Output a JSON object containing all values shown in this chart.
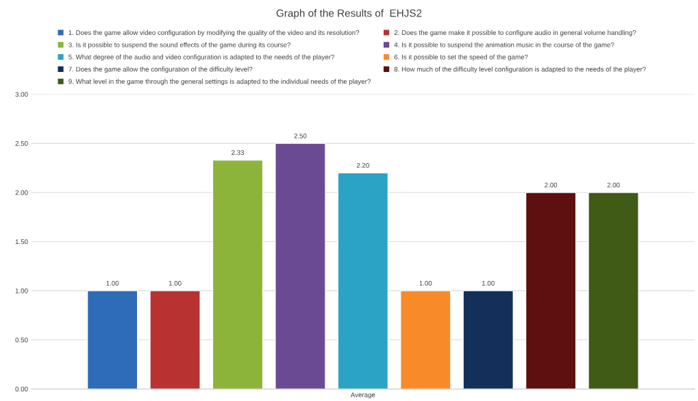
{
  "chart_data": {
    "type": "bar",
    "title": "Graph of the Results of  EHJS2",
    "categories": [
      "Average"
    ],
    "series": [
      {
        "name": "1. Does the game allow video configuration by modifying the quality of the video and its resolution?",
        "color": "#2e6bb8",
        "values": [
          1.0
        ],
        "value_labels": [
          "1.00"
        ]
      },
      {
        "name": "2. Does the game make it possible to configure audio in general volume handling?",
        "color": "#b83232",
        "values": [
          1.0
        ],
        "value_labels": [
          "1.00"
        ]
      },
      {
        "name": "3. Is it possible to suspend the sound effects of the game during its course?",
        "color": "#8cb43a",
        "values": [
          2.33
        ],
        "value_labels": [
          "2.33"
        ]
      },
      {
        "name": "4. Is it possible to suspend the animation music in the course of the game?",
        "color": "#6a4a93",
        "values": [
          2.5
        ],
        "value_labels": [
          "2.50"
        ]
      },
      {
        "name": "5. What degree of the audio and video configuration is adapted to the needs of the player?",
        "color": "#2aa3c4",
        "values": [
          2.2
        ],
        "value_labels": [
          "2.20"
        ]
      },
      {
        "name": "6. Is it possible to set the speed of the game?",
        "color": "#f98a2a",
        "values": [
          1.0
        ],
        "value_labels": [
          "1.00"
        ]
      },
      {
        "name": "7. Does the game allow the configuration of the difficulty level?",
        "color": "#132f5a",
        "values": [
          1.0
        ],
        "value_labels": [
          "1.00"
        ]
      },
      {
        "name": "8. How much of the difficulty level configuration is adapted to the needs of the player?",
        "color": "#5e0f0f",
        "values": [
          2.0
        ],
        "value_labels": [
          "2.00"
        ]
      },
      {
        "name": "9. What level in the game through the general settings is adapted to the individual needs of the player?",
        "color": "#3f5b16",
        "values": [
          2.0
        ],
        "value_labels": [
          "2.00"
        ]
      }
    ],
    "ylim": [
      0,
      3
    ],
    "yticks": [
      {
        "value": 0,
        "label": "0.00"
      },
      {
        "value": 0.5,
        "label": "0.50"
      },
      {
        "value": 1,
        "label": "1.00"
      },
      {
        "value": 1.5,
        "label": "1.50"
      },
      {
        "value": 2,
        "label": "2.00"
      },
      {
        "value": 2.5,
        "label": "2.50"
      },
      {
        "value": 3,
        "label": "3.00"
      }
    ],
    "grid": "y",
    "legend": "top"
  }
}
